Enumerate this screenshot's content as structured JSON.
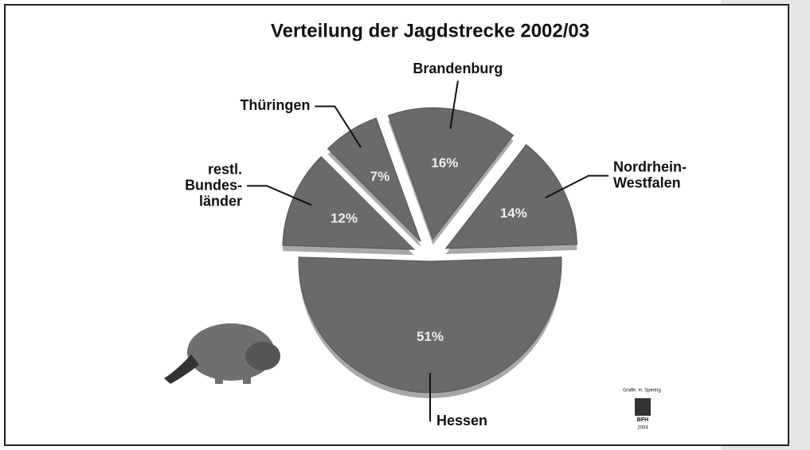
{
  "chart_data": {
    "type": "pie",
    "title": "Verteilung der Jagdstrecke 2002/03",
    "categories": [
      "Hessen",
      "restl.\nBundes-\nländer",
      "Thüringen",
      "Brandenburg",
      "Nordrhein-\nWestfalen"
    ],
    "values": [
      51,
      12,
      7,
      16,
      14
    ],
    "value_labels": [
      "51%",
      "12%",
      "7%",
      "16%",
      "14%"
    ],
    "color": "#6a6a6a",
    "annotations": [
      "Grafik: H. Spering",
      "BFH",
      "2004"
    ]
  }
}
